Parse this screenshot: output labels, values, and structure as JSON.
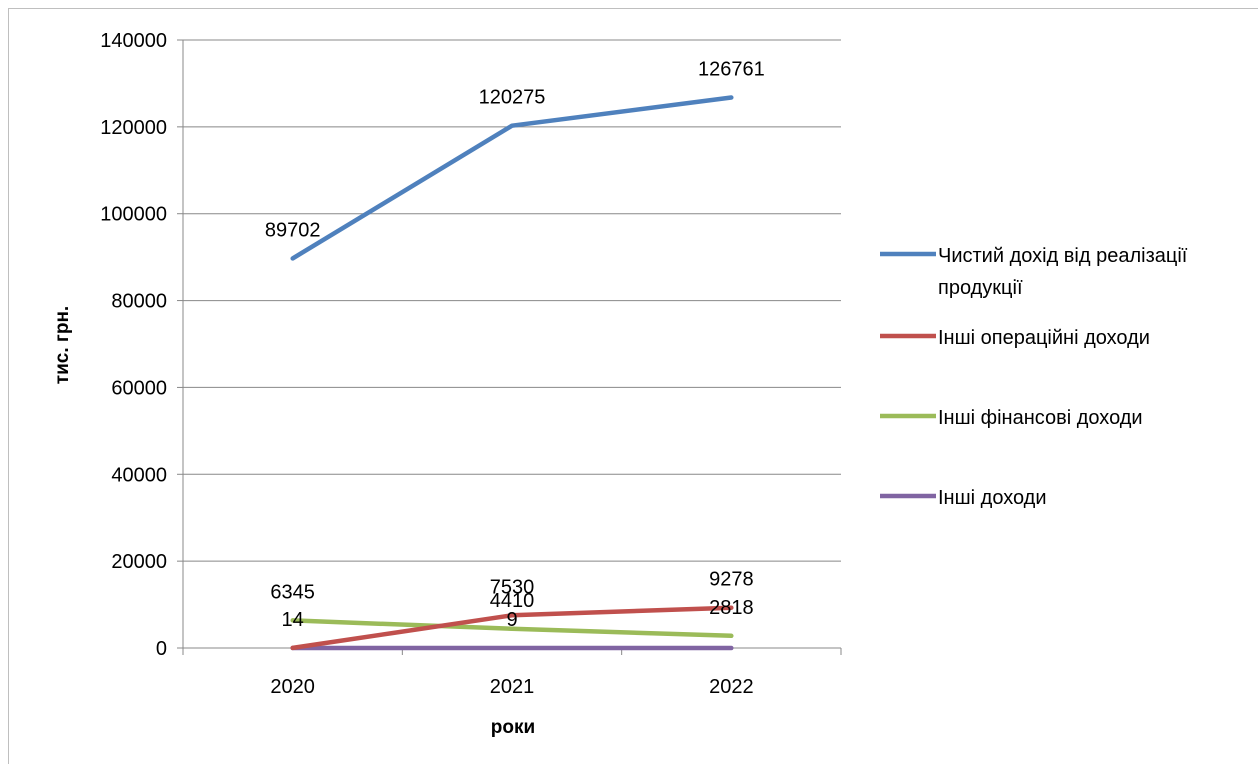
{
  "chart_data": {
    "type": "line",
    "title": "",
    "xlabel": "роки",
    "ylabel": "тис. грн.",
    "categories": [
      "2020",
      "2021",
      "2022"
    ],
    "ylim": [
      0,
      140000
    ],
    "yticks": [
      0,
      20000,
      40000,
      60000,
      80000,
      100000,
      120000,
      140000
    ],
    "grid": true,
    "legend_position": "right",
    "series": [
      {
        "name_lines": [
          "Чистий дохід від реалізації",
          "продукції"
        ],
        "color": "#4F81BD",
        "values": [
          89702,
          120275,
          126761
        ],
        "labels": [
          "89702",
          "120275",
          "126761"
        ]
      },
      {
        "name_lines": [
          "Інші операційні доходи"
        ],
        "color": "#C0504D",
        "values": [
          14,
          7530,
          9278
        ],
        "labels": [
          "14",
          "7530",
          "9278"
        ]
      },
      {
        "name_lines": [
          "Інші фінансові доходи"
        ],
        "color": "#9BBB59",
        "values": [
          6345,
          4410,
          2818
        ],
        "labels": [
          "6345",
          "4410",
          "2818"
        ]
      },
      {
        "name_lines": [
          "Інші доходи"
        ],
        "color": "#8064A2",
        "values": [
          0,
          9,
          0
        ],
        "labels": [
          "",
          "9",
          ""
        ]
      }
    ]
  }
}
